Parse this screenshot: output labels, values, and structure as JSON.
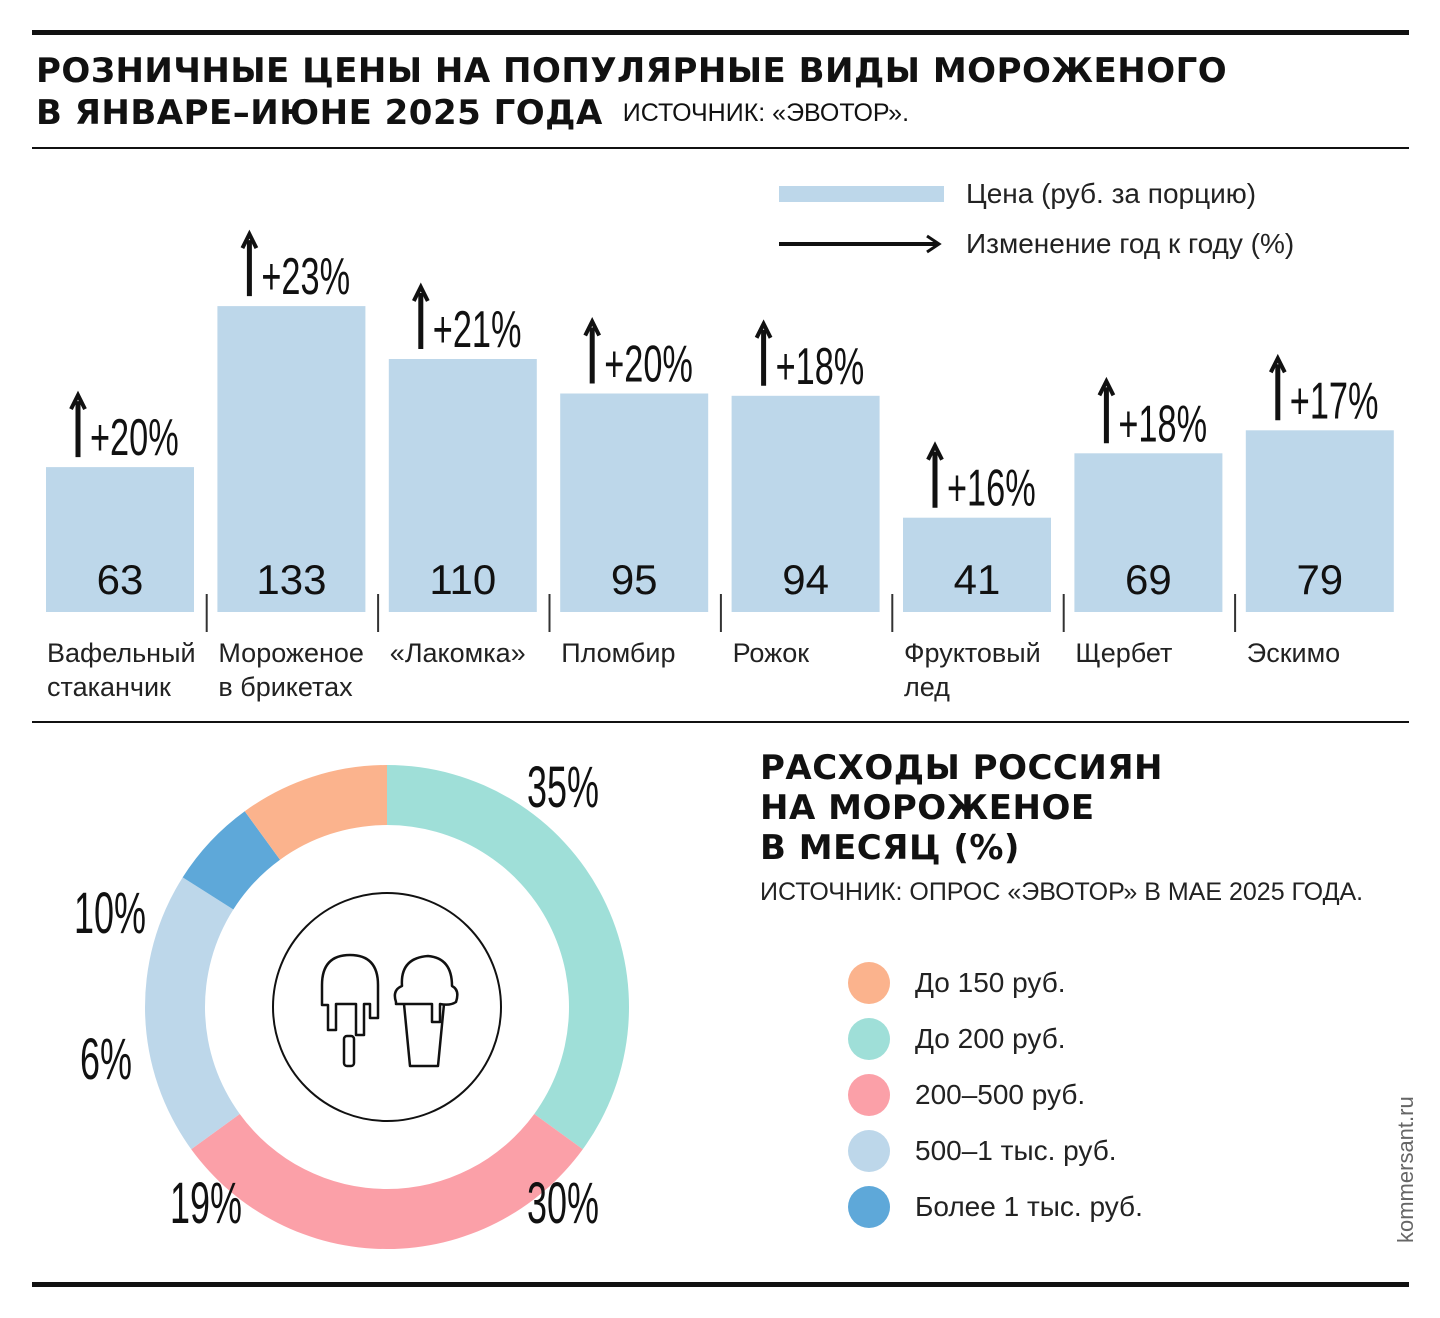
{
  "header": {
    "title_line1": "РОЗНИЧНЫЕ ЦЕНЫ НА ПОПУЛЯРНЫЕ ВИДЫ МОРОЖЕНОГО",
    "title_line2": "В ЯНВАРЕ–ИЮНЕ 2025 ГОДА",
    "source": "ИСТОЧНИК: «ЭВОТОР»."
  },
  "legend": {
    "price": "Цена (руб. за порцию)",
    "change": "Изменение год к году (%)"
  },
  "chart_data": [
    {
      "type": "bar",
      "categories": [
        [
          "Вафельный",
          "стаканчик"
        ],
        [
          "Мороженое",
          "в брикетах"
        ],
        [
          "«Лакомка»"
        ],
        [
          "Пломбир"
        ],
        [
          "Рожок"
        ],
        [
          "Фруктовый",
          "лед"
        ],
        [
          "Щербет"
        ],
        [
          "Эскимо"
        ]
      ],
      "series": [
        {
          "name": "Цена (руб. за порцию)",
          "values": [
            63,
            133,
            110,
            95,
            94,
            41,
            69,
            79
          ]
        },
        {
          "name": "Изменение год к году (%)",
          "values": [
            20,
            23,
            21,
            20,
            18,
            16,
            18,
            17
          ],
          "labels": [
            "+20%",
            "+23%",
            "+21%",
            "+20%",
            "+18%",
            "+16%",
            "+18%",
            "+17%"
          ]
        }
      ],
      "colors": {
        "bar": "#bdd7ea",
        "arrow": "#111111"
      }
    },
    {
      "type": "pie",
      "title_lines": [
        "РАСХОДЫ РОССИЯН",
        "НА МОРОЖЕНОЕ",
        "В МЕСЯЦ (%)"
      ],
      "source": "ИСТОЧНИК: ОПРОС «ЭВОТОР» В МАЕ 2025 ГОДА.",
      "donut": true,
      "center_icon": "ice-cream-icon",
      "slices": [
        {
          "label": "До 150 руб.",
          "value": 10,
          "text": "10%",
          "color": "#fbb38d"
        },
        {
          "label": "До 200 руб.",
          "value": 35,
          "text": "35%",
          "color": "#9fdfd8"
        },
        {
          "label": "200–500 руб.",
          "value": 30,
          "text": "30%",
          "color": "#fba0a8"
        },
        {
          "label": "500–1 тыс. руб.",
          "value": 19,
          "text": "19%",
          "color": "#bdd7ea"
        },
        {
          "label": "Более 1 тыс. руб.",
          "value": 6,
          "text": "6%",
          "color": "#5ea8d9"
        }
      ]
    }
  ],
  "watermark": "kommersant.ru"
}
